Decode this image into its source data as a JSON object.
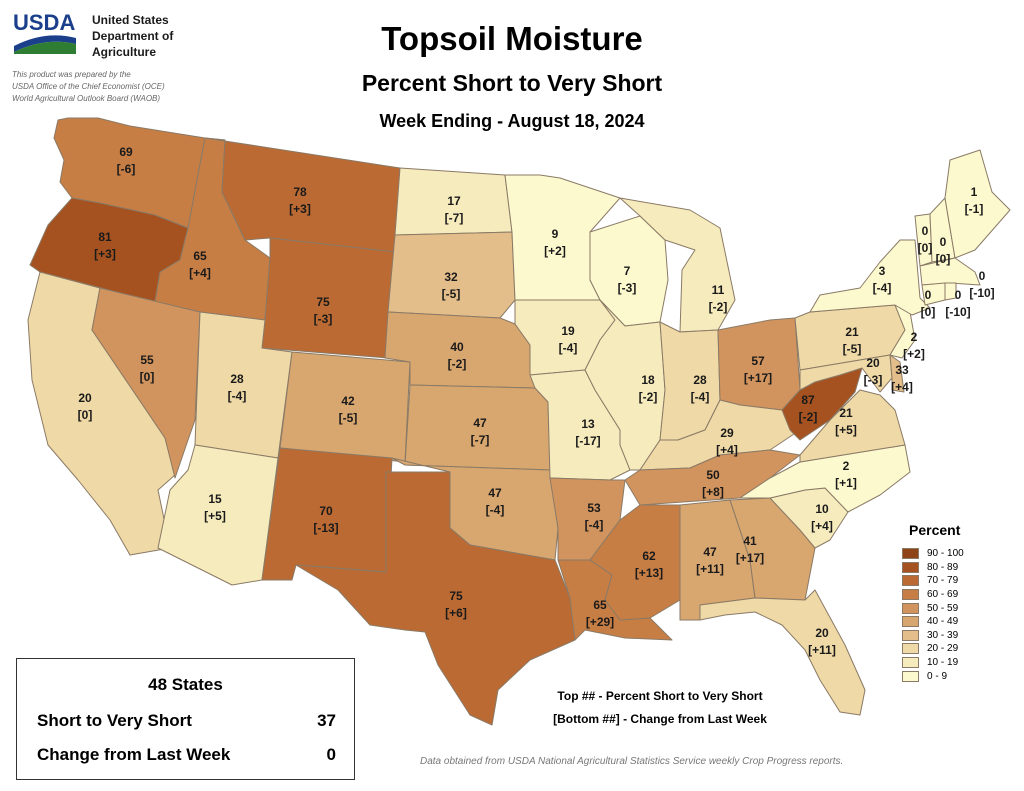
{
  "header": {
    "logo_text": "USDA",
    "agency_lines": [
      "United States",
      "Department of",
      "Agriculture"
    ],
    "prepared_lines": [
      "This product was prepared by the",
      "USDA Office of the Chief Economist (OCE)",
      "World Agricultural Outlook Board (WAOB)"
    ],
    "title": "Topsoil Moisture",
    "subtitle": "Percent Short to Very Short",
    "week": "Week Ending - August 18, 2024"
  },
  "colors": {
    "90-100": "#8e4416",
    "80-89": "#a55220",
    "70-79": "#bb6a33",
    "60-69": "#c77e45",
    "50-59": "#d2945e",
    "40-49": "#d8a66f",
    "30-39": "#e3be8a",
    "20-29": "#efd9a6",
    "10-19": "#f6ebbc",
    "0-9": "#fdf9cf"
  },
  "legend": {
    "title": "Percent",
    "items": [
      {
        "label": "90 - 100",
        "color": "#8e4416"
      },
      {
        "label": "80 - 89",
        "color": "#a55220"
      },
      {
        "label": "70 - 79",
        "color": "#bb6a33"
      },
      {
        "label": "60 - 69",
        "color": "#c77e45"
      },
      {
        "label": "50 - 59",
        "color": "#d2945e"
      },
      {
        "label": "40 - 49",
        "color": "#d8a66f"
      },
      {
        "label": "30 - 39",
        "color": "#e3be8a"
      },
      {
        "label": "20 - 29",
        "color": "#efd9a6"
      },
      {
        "label": "10 - 19",
        "color": "#f6ebbc"
      },
      {
        "label": "0 - 9",
        "color": "#fdf9cf"
      }
    ]
  },
  "states": {
    "WA": {
      "value": 69,
      "change": "[-6]"
    },
    "OR": {
      "value": 81,
      "change": "[+3]"
    },
    "ID": {
      "value": 65,
      "change": "[+4]"
    },
    "MT": {
      "value": 78,
      "change": "[+3]"
    },
    "WY": {
      "value": 75,
      "change": "[-3]"
    },
    "CA": {
      "value": 20,
      "change": "[0]"
    },
    "NV": {
      "value": 55,
      "change": "[0]"
    },
    "UT": {
      "value": 28,
      "change": "[-4]"
    },
    "AZ": {
      "value": 15,
      "change": "[+5]"
    },
    "CO": {
      "value": 42,
      "change": "[-5]"
    },
    "NM": {
      "value": 70,
      "change": "[-13]"
    },
    "ND": {
      "value": 17,
      "change": "[-7]"
    },
    "SD": {
      "value": 32,
      "change": "[-5]"
    },
    "NE": {
      "value": 40,
      "change": "[-2]"
    },
    "KS": {
      "value": 47,
      "change": "[-7]"
    },
    "OK": {
      "value": 47,
      "change": "[-4]"
    },
    "TX": {
      "value": 75,
      "change": "[+6]"
    },
    "MN": {
      "value": 9,
      "change": "[+2]"
    },
    "IA": {
      "value": 19,
      "change": "[-4]"
    },
    "MO": {
      "value": 13,
      "change": "[-17]"
    },
    "AR": {
      "value": 53,
      "change": "[-4]"
    },
    "LA": {
      "value": 65,
      "change": "[+29]"
    },
    "WI": {
      "value": 7,
      "change": "[-3]"
    },
    "IL": {
      "value": 18,
      "change": "[-2]"
    },
    "MI": {
      "value": 11,
      "change": "[-2]"
    },
    "IN": {
      "value": 28,
      "change": "[-4]"
    },
    "OH": {
      "value": 57,
      "change": "[+17]"
    },
    "KY": {
      "value": 29,
      "change": "[+4]"
    },
    "TN": {
      "value": 50,
      "change": "[+8]"
    },
    "MS": {
      "value": 62,
      "change": "[+13]"
    },
    "AL": {
      "value": 47,
      "change": "[+11]"
    },
    "GA": {
      "value": 41,
      "change": "[+17]"
    },
    "FL": {
      "value": 20,
      "change": "[+11]"
    },
    "SC": {
      "value": 10,
      "change": "[+4]"
    },
    "NC": {
      "value": 2,
      "change": "[+1]"
    },
    "VA": {
      "value": 21,
      "change": "[+5]"
    },
    "WV": {
      "value": 87,
      "change": "[-2]"
    },
    "PA": {
      "value": 21,
      "change": "[-5]"
    },
    "MD": {
      "value": 20,
      "change": "[-3]"
    },
    "DE": {
      "value": 33,
      "change": "[+4]"
    },
    "NJ": {
      "value": 2,
      "change": "[+2]"
    },
    "NY": {
      "value": 3,
      "change": "[-4]"
    },
    "VT": {
      "value": 0,
      "change": "[0]"
    },
    "NH": {
      "value": 0,
      "change": "[0]"
    },
    "ME": {
      "value": 1,
      "change": "[-1]"
    },
    "MA": {
      "value": 0,
      "change": "[-10]"
    },
    "CT": {
      "value": 0,
      "change": "[0]"
    },
    "RI": {
      "value": 0,
      "change": "[-10]"
    }
  },
  "notes": {
    "top": "Top ## - Percent Short to Very Short",
    "bottom": "[Bottom ##] - Change from Last Week"
  },
  "summary": {
    "heading": "48 States",
    "rows": [
      {
        "label": "Short to Very Short",
        "value": "37"
      },
      {
        "label": "Change from Last Week",
        "value": "0"
      }
    ]
  },
  "footnote": "Data obtained from USDA National Agricultural Statistics Service weekly Crop Progress reports."
}
